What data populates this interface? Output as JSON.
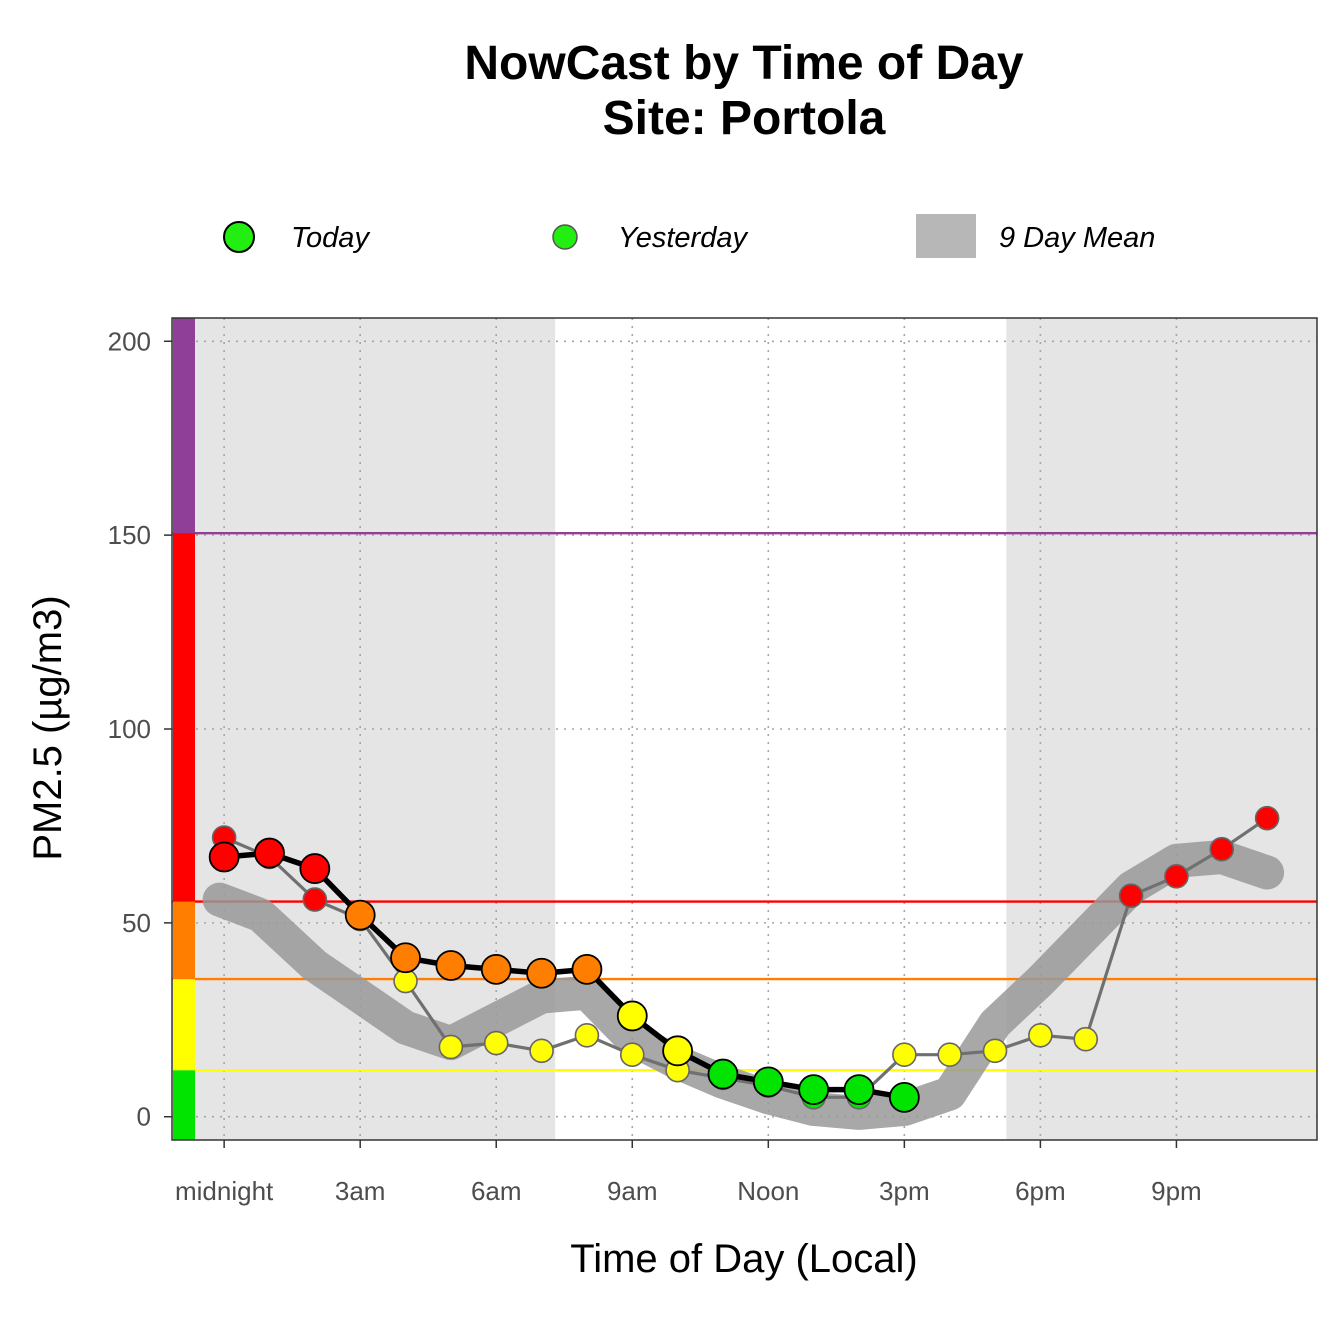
{
  "chart_data": {
    "type": "line",
    "title": "NowCast by Time of Day",
    "subtitle": "Site: Portola",
    "xlabel": "Time of Day (Local)",
    "ylabel": "PM2.5 (µg/m3)",
    "xlim": [
      -1.15,
      24.1
    ],
    "ylim": [
      -6,
      206
    ],
    "y_ticks": [
      0,
      50,
      100,
      150,
      200
    ],
    "x_ticks": [
      {
        "hour": 0,
        "label": "midnight"
      },
      {
        "hour": 3,
        "label": "3am"
      },
      {
        "hour": 6,
        "label": "6am"
      },
      {
        "hour": 9,
        "label": "9am"
      },
      {
        "hour": 12,
        "label": "Noon"
      },
      {
        "hour": 15,
        "label": "3pm"
      },
      {
        "hour": 18,
        "label": "6pm"
      },
      {
        "hour": 21,
        "label": "9pm"
      }
    ],
    "legend": {
      "placement": "top",
      "items": [
        {
          "label": "Today",
          "symbol": "point-large"
        },
        {
          "label": "Yesterday",
          "symbol": "point-small"
        },
        {
          "label": "9 Day Mean",
          "symbol": "band"
        }
      ]
    },
    "night_shading": [
      {
        "from_hour": -1.15,
        "to_hour": 7.3
      },
      {
        "from_hour": 17.25,
        "to_hour": 24.1
      }
    ],
    "aqi_breakpoints": [
      {
        "value": 12,
        "color": "#ffff00"
      },
      {
        "value": 35.5,
        "color": "#ff7e00"
      },
      {
        "value": 55.5,
        "color": "#ff0000"
      },
      {
        "value": 150.5,
        "color": "#8f3f97"
      }
    ],
    "aqi_bands": [
      {
        "from": -6,
        "to": 12,
        "color": "#00e400"
      },
      {
        "from": 12,
        "to": 35.5,
        "color": "#ffff00"
      },
      {
        "from": 35.5,
        "to": 55.5,
        "color": "#ff7e00"
      },
      {
        "from": 55.5,
        "to": 150.5,
        "color": "#ff0000"
      },
      {
        "from": 150.5,
        "to": 206,
        "color": "#8f3f97"
      }
    ],
    "series": [
      {
        "name": "9 Day Mean",
        "style": "band",
        "color": "#999999",
        "x": [
          -0.1,
          0.8,
          2,
          3,
          4,
          5,
          6,
          7,
          8,
          9,
          10,
          11,
          12,
          13,
          14,
          15,
          16,
          17,
          18,
          19,
          20,
          21,
          22,
          23
        ],
        "y": [
          56,
          52,
          39,
          31,
          23,
          19,
          25,
          31,
          32,
          20,
          14,
          9,
          5,
          2,
          1,
          2,
          6,
          24,
          35,
          47,
          59,
          66,
          67,
          63
        ]
      },
      {
        "name": "Yesterday",
        "style": "points-small",
        "line_color": "#707070",
        "x": [
          0,
          1,
          2,
          3,
          4,
          5,
          6,
          7,
          8,
          9,
          10,
          11,
          12,
          13,
          14,
          15,
          16,
          17,
          18,
          19,
          20,
          21,
          22,
          23
        ],
        "y": [
          72,
          67,
          56,
          51,
          35,
          18,
          19,
          17,
          21,
          16,
          12,
          10,
          8,
          5,
          5,
          16,
          16,
          17,
          21,
          20,
          57,
          62,
          69,
          77
        ]
      },
      {
        "name": "Today",
        "style": "points-large",
        "line_color": "#000000",
        "x": [
          0,
          1,
          2,
          3,
          4,
          5,
          6,
          7,
          8,
          9,
          10,
          11,
          12,
          13,
          14,
          15
        ],
        "y": [
          67,
          68,
          64,
          52,
          41,
          39,
          38,
          37,
          38,
          26,
          17,
          11,
          9,
          7,
          7,
          5
        ]
      }
    ]
  }
}
